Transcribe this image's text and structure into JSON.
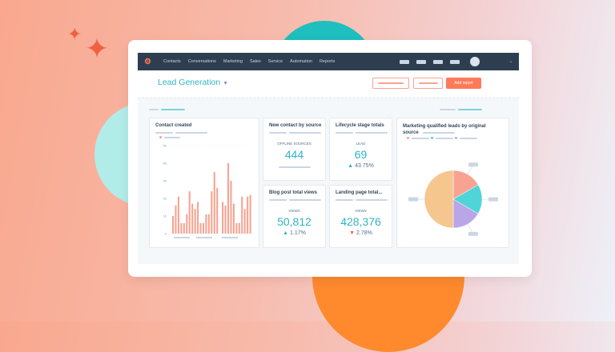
{
  "nav": {
    "items": [
      "Contacts",
      "Conversations",
      "Marketing",
      "Sales",
      "Service",
      "Automation",
      "Reports"
    ]
  },
  "header": {
    "title": "Lead Generation",
    "add_report": "Add report"
  },
  "cards": {
    "contact_created": {
      "title": "Contact created"
    },
    "new_contact": {
      "title": "New contact by source",
      "label": "OFFLINE SOURCES",
      "value": "444"
    },
    "lifecycle": {
      "title": "Lifecycle stage totals",
      "label": "LEAD",
      "value": "69",
      "change": "43.75%",
      "direction": "up"
    },
    "blog": {
      "title": "Blog post total views",
      "label": "VIEWS",
      "value": "50,812",
      "change": "1.17%",
      "direction": "up"
    },
    "landing": {
      "title": "Landing page total...",
      "label": "VIEWS",
      "value": "428,376",
      "change": "2.78%",
      "direction": "down"
    },
    "mql": {
      "title": "Marketing qualified leads by original source"
    }
  },
  "colors": {
    "accent": "#2fb5c2",
    "nav": "#2d3e50",
    "brand": "#ff7a59",
    "bars": "#f8a392"
  },
  "chart_data": [
    {
      "type": "bar",
      "title": "Contact created",
      "yticks": [
        0,
        10,
        20,
        30,
        40,
        50
      ],
      "ylim": [
        0,
        50
      ],
      "values": [
        10,
        16,
        21,
        6,
        6,
        11,
        24,
        17,
        14,
        18,
        6,
        6,
        11,
        11,
        24,
        35,
        26,
        0,
        18,
        16,
        40,
        30,
        17,
        6,
        6,
        21,
        14,
        21,
        22
      ]
    },
    {
      "type": "pie",
      "title": "Marketing qualified leads by original source",
      "values": [
        16.7,
        16.7,
        16.6,
        50
      ],
      "colors": [
        "#f8a392",
        "#4fd4d8",
        "#b9a6e6",
        "#f5c68e"
      ]
    }
  ]
}
